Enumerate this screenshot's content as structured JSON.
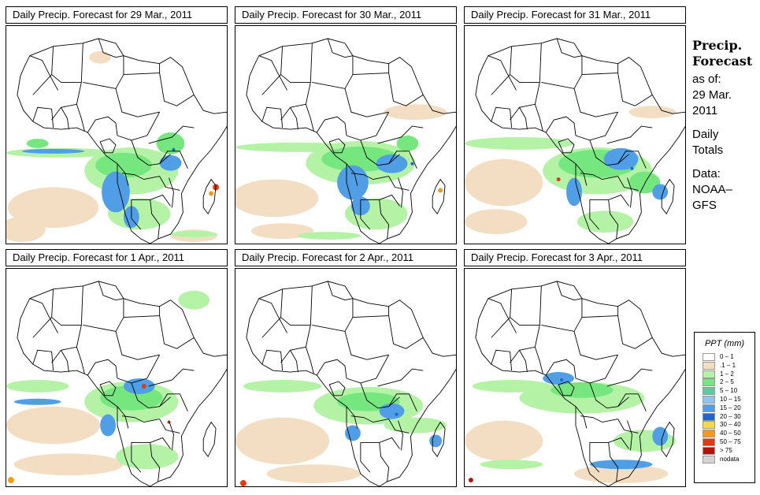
{
  "panels": [
    {
      "title": "Daily Precip. Forecast for  29 Mar., 2011"
    },
    {
      "title": "Daily Precip. Forecast for  30 Mar., 2011"
    },
    {
      "title": "Daily Precip. Forecast for  31 Mar., 2011"
    },
    {
      "title": "Daily Precip. Forecast for  1 Apr., 2011"
    },
    {
      "title": "Daily Precip. Forecast for  2 Apr., 2011"
    },
    {
      "title": "Daily Precip. Forecast for  3 Apr., 2011"
    }
  ],
  "info": {
    "heading1": "Precip.",
    "heading2": "Forecast",
    "asof": "as of:",
    "date1": "29 Mar.",
    "date2": "2011",
    "kind1": "Daily",
    "kind2": "Totals",
    "data_label": "Data:",
    "source1": "NOAA–",
    "source2": "GFS"
  },
  "legend": {
    "title": "PPT (mm)",
    "items": [
      {
        "label": "0 – 1",
        "color": "#ffffff"
      },
      {
        "label": ".1 – 1",
        "color": "#f3dcc0"
      },
      {
        "label": "1 – 2",
        "color": "#b4f2a6"
      },
      {
        "label": "2 – 5",
        "color": "#76e77e"
      },
      {
        "label": "5 – 10",
        "color": "#60c9a2"
      },
      {
        "label": "10 – 15",
        "color": "#8ec6ef"
      },
      {
        "label": "15 – 20",
        "color": "#4f9ee6"
      },
      {
        "label": "20 – 30",
        "color": "#1f64d4"
      },
      {
        "label": "30 – 40",
        "color": "#f7d84a"
      },
      {
        "label": "40 – 50",
        "color": "#f39a1e"
      },
      {
        "label": "50 – 75",
        "color": "#e23a10"
      },
      {
        "label": "> 75",
        "color": "#b4100c"
      },
      {
        "label": "nodata",
        "color": "#d4d4d4"
      }
    ]
  }
}
